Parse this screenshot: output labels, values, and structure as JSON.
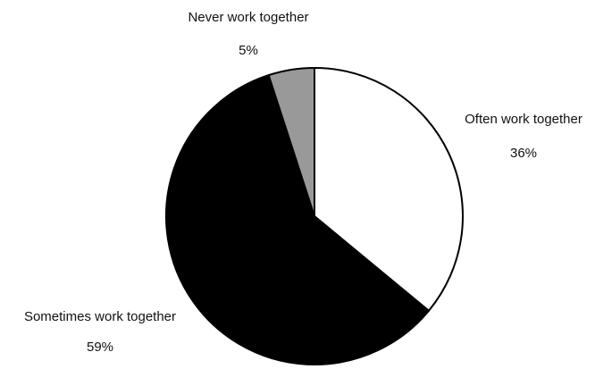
{
  "chart_data": {
    "type": "pie",
    "title": "",
    "slices": [
      {
        "label": "Often work together",
        "value": 36,
        "value_label": "36%",
        "color": "#ffffff"
      },
      {
        "label": "Sometimes work together",
        "value": 59,
        "value_label": "59%",
        "color": "#000000"
      },
      {
        "label": "Never work together",
        "value": 5,
        "value_label": "5%",
        "color": "#999999"
      }
    ],
    "start_angle": "12 o'clock",
    "direction": "clockwise",
    "outline_color": "#000000",
    "legend": "none"
  }
}
